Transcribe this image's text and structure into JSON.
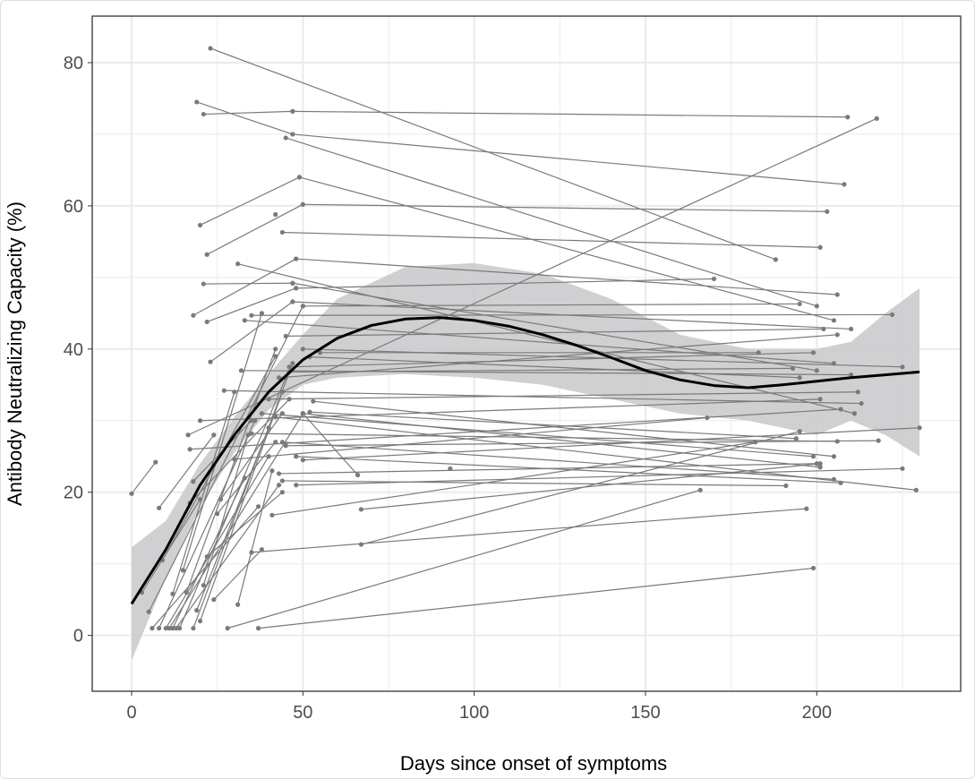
{
  "chart_data": {
    "type": "line",
    "title": "",
    "xlabel": "Days since onset of symptoms",
    "ylabel": "Antibody Neutralizing Capacity (%)",
    "xlim": [
      -11.5,
      242
    ],
    "ylim": [
      -7.8,
      86.5
    ],
    "xticks": [
      0,
      50,
      100,
      150,
      200
    ],
    "yticks": [
      0,
      20,
      40,
      60,
      80
    ],
    "grid": true,
    "colors": {
      "segments": "#7a7a7a",
      "smooth": "#000000",
      "ribbon": "#c8c8cb",
      "grid": "#ebebeb"
    },
    "segments": [
      [
        23,
        82,
        188,
        52.5
      ],
      [
        19,
        74.5,
        47,
        70
      ],
      [
        47,
        70,
        208,
        63
      ],
      [
        21,
        72.8,
        47,
        73.2
      ],
      [
        47,
        73.2,
        209,
        72.4
      ],
      [
        45,
        69.5,
        200,
        46
      ],
      [
        20,
        57.3,
        49,
        64
      ],
      [
        49,
        64,
        205,
        44
      ],
      [
        22,
        53.2,
        50,
        60.2
      ],
      [
        50,
        60.2,
        203,
        59.2
      ],
      [
        44,
        56.3,
        201,
        54.2
      ],
      [
        31,
        51.9,
        211,
        31
      ],
      [
        18,
        44.7,
        48,
        52.6
      ],
      [
        48,
        52.6,
        206,
        47.6
      ],
      [
        21,
        49.1,
        47,
        49.2
      ],
      [
        47,
        49.2,
        200,
        37
      ],
      [
        22,
        43.8,
        48,
        48.5
      ],
      [
        48,
        48.5,
        170,
        49.8
      ],
      [
        23,
        38.2,
        47,
        46.6
      ],
      [
        47,
        46.6,
        210,
        42.8
      ],
      [
        5,
        3.3,
        50,
        46
      ],
      [
        50,
        46,
        195,
        46.3
      ],
      [
        0,
        19.8,
        7,
        24.2
      ],
      [
        16.5,
        28,
        217.5,
        72.2
      ],
      [
        35,
        44.7,
        222,
        44.8
      ],
      [
        33,
        44,
        205,
        38
      ],
      [
        27,
        34.2,
        213,
        32.4
      ],
      [
        17,
        26,
        207,
        31.6
      ],
      [
        20,
        30,
        201,
        33
      ],
      [
        46,
        37.5,
        199,
        39.5
      ],
      [
        45,
        41.8,
        202,
        42.8
      ],
      [
        50,
        40,
        225,
        37.5
      ],
      [
        52,
        38.9,
        195,
        36
      ],
      [
        32,
        37,
        210,
        36.4
      ],
      [
        43,
        36,
        206,
        42
      ],
      [
        40,
        33,
        212,
        34
      ],
      [
        46,
        36.8,
        193,
        37.3
      ],
      [
        55,
        39.5,
        183,
        39.5
      ],
      [
        38,
        31,
        199,
        25
      ],
      [
        42,
        30.5,
        229,
        20.3
      ],
      [
        44,
        27,
        205,
        21.8
      ],
      [
        50,
        31,
        201,
        23.5
      ],
      [
        52,
        31.2,
        194,
        27.5
      ],
      [
        35,
        28.2,
        206,
        27.1
      ],
      [
        45,
        26.5,
        218,
        27.2
      ],
      [
        30,
        24.6,
        168,
        30.4
      ],
      [
        48,
        25,
        207,
        21.3
      ],
      [
        43,
        22.6,
        200,
        24
      ],
      [
        44,
        21.6,
        191,
        20.9
      ],
      [
        48,
        21,
        225,
        23.3
      ],
      [
        53,
        32.7,
        205,
        25
      ],
      [
        50,
        24.5,
        230,
        29
      ],
      [
        35,
        11.6,
        197,
        17.7
      ],
      [
        67,
        12.7,
        195,
        28.5
      ],
      [
        67,
        17.6,
        201,
        24
      ],
      [
        37,
        1,
        199,
        9.4
      ],
      [
        28,
        1,
        166,
        20.3
      ],
      [
        41,
        16.8,
        182,
        27
      ],
      [
        50,
        31,
        66,
        22.4
      ],
      [
        31,
        4.3,
        41,
        23
      ],
      [
        8,
        1,
        36,
        30
      ],
      [
        10,
        1,
        40,
        25
      ],
      [
        11,
        1,
        50,
        31
      ],
      [
        12,
        1,
        33,
        22
      ],
      [
        14,
        1,
        45,
        36
      ],
      [
        18,
        1,
        47,
        38
      ],
      [
        20,
        2,
        44,
        34
      ],
      [
        9,
        10.5,
        42,
        39
      ],
      [
        12,
        5.8,
        30,
        34
      ],
      [
        15,
        9.1,
        38,
        45
      ],
      [
        16,
        6,
        42,
        40
      ],
      [
        19,
        3.5,
        40,
        29
      ],
      [
        21,
        7,
        34,
        28
      ],
      [
        3,
        6,
        20,
        19
      ],
      [
        17,
        18.5,
        46,
        33
      ],
      [
        18,
        21.5,
        35,
        30
      ],
      [
        8,
        17.8,
        24,
        28
      ],
      [
        22,
        11,
        44,
        20
      ],
      [
        25,
        17,
        42,
        27
      ],
      [
        13,
        1,
        43,
        21
      ],
      [
        6,
        1,
        37,
        18
      ],
      [
        24,
        5,
        38,
        12
      ],
      [
        26,
        19,
        44,
        31
      ]
    ],
    "points": [
      [
        42,
        58.8
      ],
      [
        93,
        23.3
      ]
    ],
    "smooth": {
      "x": [
        0,
        10,
        20,
        30,
        40,
        50,
        60,
        70,
        80,
        90,
        100,
        110,
        120,
        130,
        140,
        150,
        160,
        170,
        180,
        190,
        200,
        210,
        220,
        230
      ],
      "y": [
        4.4,
        12,
        21,
        28,
        34,
        38.5,
        41.5,
        43.3,
        44.2,
        44.4,
        44,
        43.2,
        42,
        40.5,
        38.8,
        37,
        35.7,
        34.9,
        34.6,
        35,
        35.5,
        36,
        36.4,
        36.8
      ]
    },
    "ribbon": {
      "x": [
        0,
        10,
        20,
        30,
        40,
        50,
        60,
        80,
        100,
        120,
        140,
        160,
        180,
        200,
        210,
        220,
        230
      ],
      "lower": [
        -3.5,
        8,
        18,
        25.5,
        31.5,
        35,
        36,
        36.5,
        36,
        35,
        33,
        31,
        30,
        28,
        30,
        28,
        25
      ],
      "upper": [
        12.3,
        16,
        24,
        30.5,
        36.5,
        42,
        47,
        51.5,
        52,
        50.5,
        47,
        42,
        40,
        40,
        41,
        45,
        48.5
      ]
    }
  }
}
